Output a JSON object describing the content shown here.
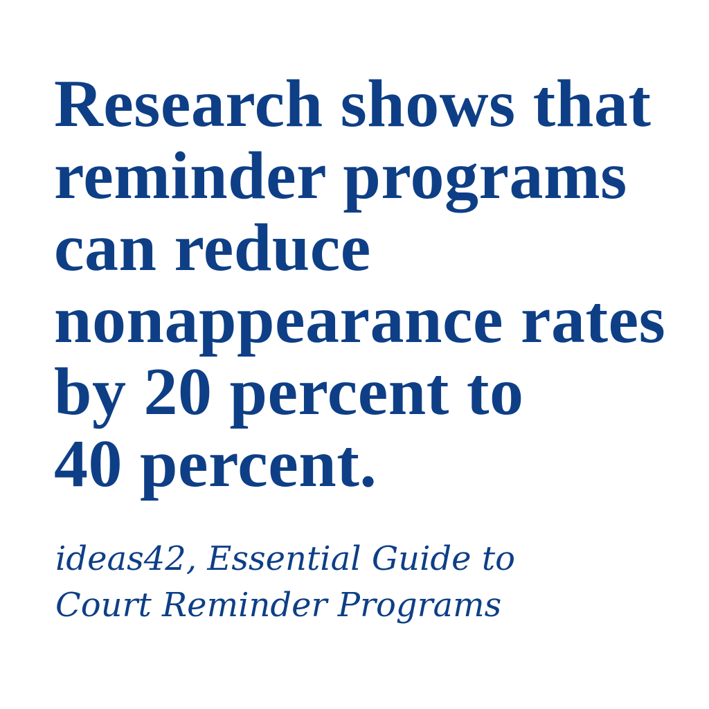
{
  "quote": {
    "lines": [
      "Research shows that",
      "reminder programs",
      "can reduce",
      "nonappearance rates",
      "by 20 percent to",
      "40 percent."
    ]
  },
  "attribution": {
    "lines": [
      "ideas42, Essential Guide to",
      "Court Reminder Programs"
    ]
  },
  "colors": {
    "text": "#0e3f86",
    "background": "#ffffff"
  }
}
